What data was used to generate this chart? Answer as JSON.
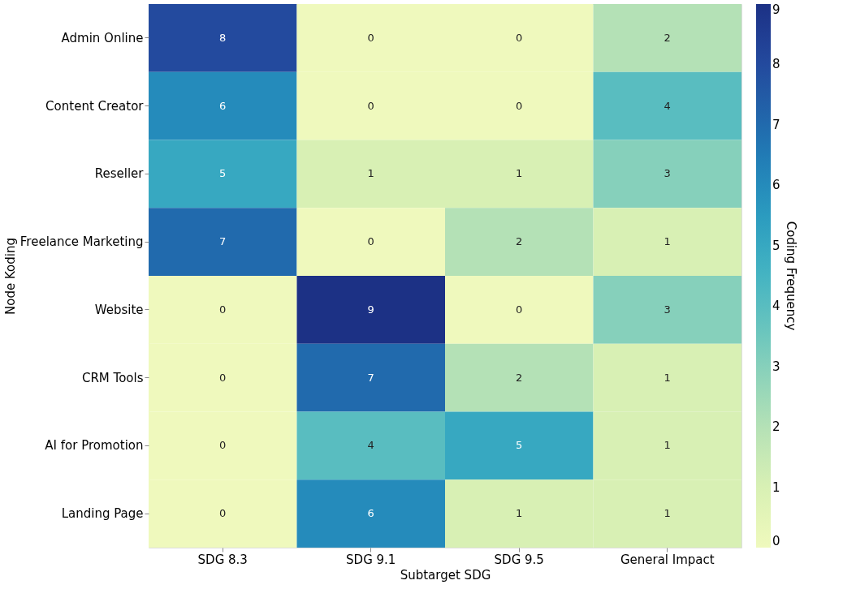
{
  "chart_data": {
    "type": "heatmap",
    "xlabel": "Subtarget SDG",
    "ylabel": "Node Koding",
    "clabel": "Coding Frequency",
    "categories": [
      "SDG 8.3",
      "SDG 9.1",
      "SDG 9.5",
      "General Impact"
    ],
    "y_categories": [
      "Admin Online",
      "Content Creator",
      "Reseller",
      "Freelance Marketing",
      "Website",
      "CRM Tools",
      "AI for Promotion",
      "Landing Page"
    ],
    "cells": [
      [
        8,
        0,
        0,
        2
      ],
      [
        6,
        0,
        0,
        4
      ],
      [
        5,
        1,
        1,
        3
      ],
      [
        7,
        0,
        2,
        1
      ],
      [
        0,
        9,
        0,
        3
      ],
      [
        0,
        7,
        2,
        1
      ],
      [
        0,
        4,
        5,
        1
      ],
      [
        0,
        6,
        1,
        1
      ]
    ],
    "clim": [
      0,
      9
    ],
    "cticks": [
      0,
      1,
      2,
      3,
      4,
      5,
      6,
      7,
      8,
      9
    ],
    "data_labels": true
  }
}
